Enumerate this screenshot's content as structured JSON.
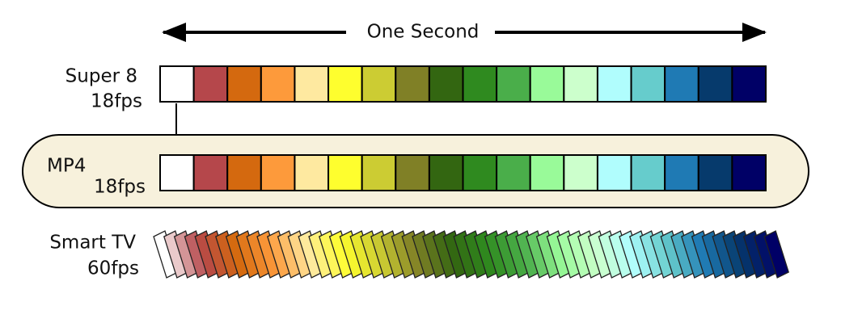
{
  "header": {
    "title": "One Second"
  },
  "rows": [
    {
      "label": "Super 8",
      "rate": "18fps"
    },
    {
      "label": "MP4",
      "rate": "18fps"
    },
    {
      "label": "Smart TV",
      "rate": "60fps"
    }
  ]
}
